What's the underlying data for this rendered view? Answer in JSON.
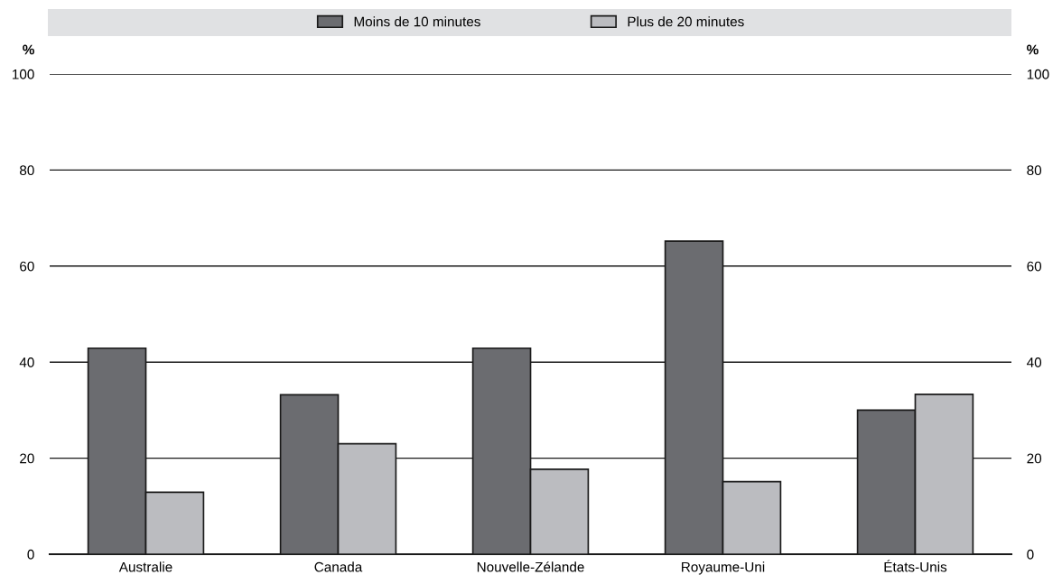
{
  "chart_data": {
    "type": "bar",
    "categories": [
      "Australie",
      "Canada",
      "Nouvelle-Zélande",
      "Royaume-Uni",
      "États-Unis"
    ],
    "series": [
      {
        "name": "Moins de 10 minutes",
        "color": "#6b6c70",
        "values": [
          42.9,
          33.2,
          42.9,
          65.2,
          30.0
        ]
      },
      {
        "name": "Plus de 20 minutes",
        "color": "#bbbcc0",
        "values": [
          12.9,
          23.0,
          17.7,
          15.1,
          33.3
        ]
      }
    ],
    "ylabel": "%",
    "y2label": "%",
    "ylim": [
      0,
      100
    ],
    "yticks": [
      0,
      20,
      40,
      60,
      80,
      100
    ],
    "y2lim": [
      0,
      100
    ],
    "y2ticks": [
      0,
      20,
      40,
      60,
      80,
      100
    ],
    "grid": "y",
    "legend": "top"
  }
}
